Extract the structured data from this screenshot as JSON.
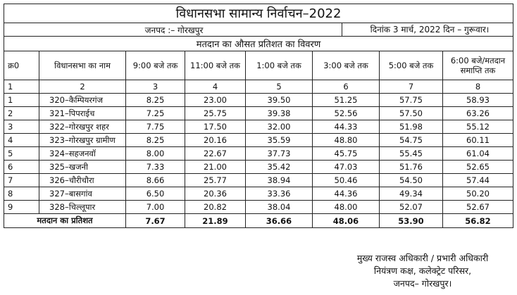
{
  "header": {
    "title": "विधानसभा सामान्य निर्वाचन–2022",
    "district": "जनपद :– गोरखपुर",
    "date": "दिनांक 3 मार्च, 2022  दिन – गुरूवार।"
  },
  "table": {
    "caption": "मतदान का औसत प्रतिशत का विवरण",
    "columns": [
      "क्र0",
      "विधानसभा का नाम",
      "9:00 बजे तक",
      "11:00 बजे तक",
      "1:00 बजे तक",
      "3:00 बजे तक",
      "5:00 बजे तक",
      "6:00 बजे/मतदान समाप्ति तक"
    ],
    "column_numbers": [
      "1",
      "2",
      "3",
      "4",
      "5",
      "6",
      "7",
      "8"
    ],
    "rows": [
      [
        "1",
        "320–कैम्पियरगंज",
        "8.25",
        "23.00",
        "39.50",
        "51.25",
        "57.75",
        "58.93"
      ],
      [
        "2",
        "321–पिपराईच",
        "7.25",
        "25.75",
        "39.38",
        "52.56",
        "57.50",
        "63.26"
      ],
      [
        "3",
        "322–गोरखपुर शहर",
        "7.75",
        "17.50",
        "32.00",
        "44.33",
        "51.98",
        "55.12"
      ],
      [
        "4",
        "323–गोरखपुर ग्रामीण",
        "8.25",
        "20.16",
        "35.59",
        "48.80",
        "54.75",
        "60.11"
      ],
      [
        "5",
        "324–सहजनवॉ",
        "8.00",
        "22.67",
        "37.73",
        "45.75",
        "55.45",
        "61.04"
      ],
      [
        "6",
        "325–खजनी",
        "7.33",
        "21.00",
        "35.42",
        "47.03",
        "51.76",
        "52.65"
      ],
      [
        "7",
        "326–चौरीचौरा",
        "8.66",
        "25.77",
        "38.94",
        "50.46",
        "54.50",
        "57.44"
      ],
      [
        "8",
        "327–बासगांव",
        "6.50",
        "20.36",
        "33.36",
        "44.36",
        "49.34",
        "50.20"
      ],
      [
        "9",
        "328–चिल्लूपार",
        "7.00",
        "20.82",
        "38.04",
        "48.00",
        "52.07",
        "52.67"
      ]
    ],
    "total": {
      "label": "मतदान का प्रतिशत",
      "values": [
        "7.67",
        "21.89",
        "36.66",
        "48.06",
        "53.90",
        "56.82"
      ]
    }
  },
  "signature": {
    "lines": [
      "मुख्य राजस्व अधिकारी / प्रभारी अधिकारी",
      "नियंत्रण कक्ष, कलेक्ट्रेट परिसर,",
      "जनपद– गोरखपुर।"
    ]
  }
}
